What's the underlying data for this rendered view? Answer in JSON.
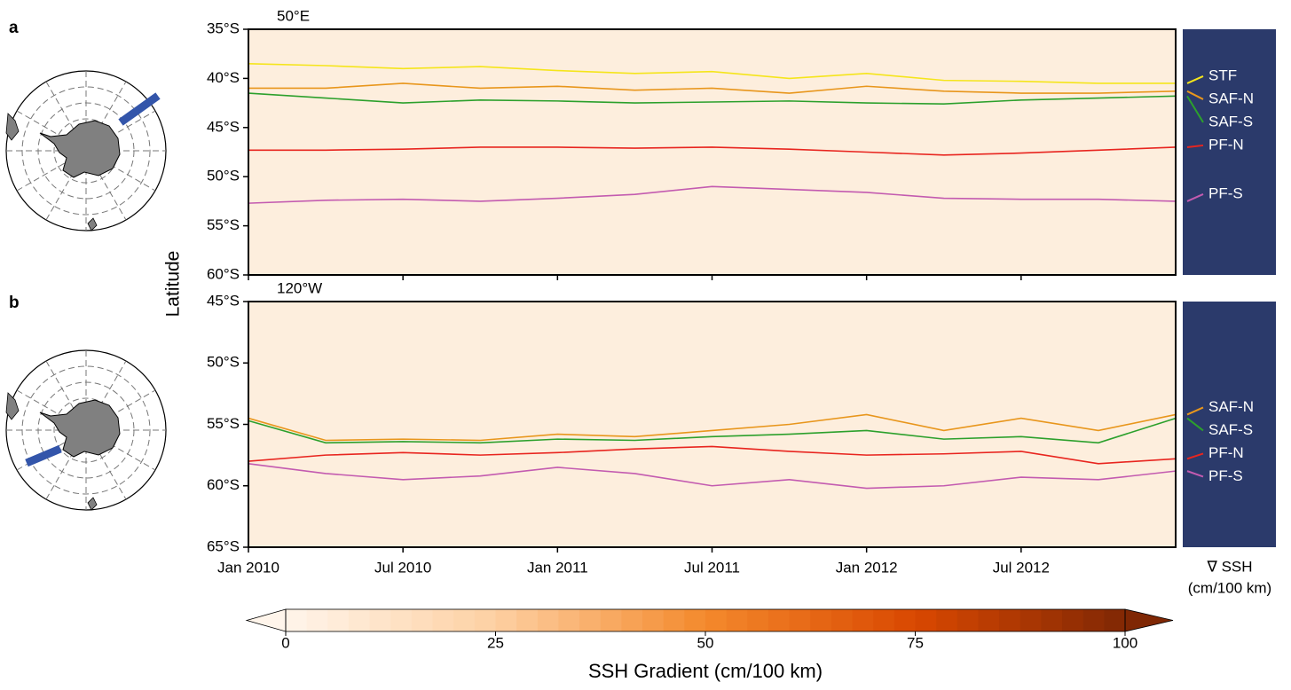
{
  "chart_data": [
    {
      "type": "line",
      "panel_label": "a",
      "title": "50°E",
      "ylabel": "Latitude",
      "x": [
        "2010-01",
        "2010-04",
        "2010-07",
        "2010-10",
        "2011-01",
        "2011-04",
        "2011-07",
        "2011-10",
        "2012-01",
        "2012-04",
        "2012-07",
        "2012-10",
        "2013-01"
      ],
      "xlim": [
        "2010-01",
        "2013-01"
      ],
      "xticks": [
        "2010-01",
        "2010-07",
        "2011-01",
        "2011-07",
        "2012-01",
        "2012-07"
      ],
      "ylim": [
        -60,
        -35
      ],
      "yticks": [
        {
          "value": -35,
          "label": "35°S"
        },
        {
          "value": -40,
          "label": "40°S"
        },
        {
          "value": -45,
          "label": "45°S"
        },
        {
          "value": -50,
          "label": "50°S"
        },
        {
          "value": -55,
          "label": "55°S"
        },
        {
          "value": -60,
          "label": "60°S"
        }
      ],
      "series": [
        {
          "name": "STF",
          "color": "#f5e51b",
          "values": [
            -38.5,
            -38.7,
            -39,
            -38.8,
            -39.2,
            -39.5,
            -39.3,
            -40,
            -39.5,
            -40.2,
            -40.3,
            -40.5,
            -40.5
          ]
        },
        {
          "name": "SAF-N",
          "color": "#e8961c",
          "values": [
            -41,
            -41,
            -40.5,
            -41,
            -40.8,
            -41.2,
            -41,
            -41.5,
            -40.8,
            -41.3,
            -41.5,
            -41.5,
            -41.3
          ]
        },
        {
          "name": "SAF-S",
          "color": "#2ca02c",
          "values": [
            -41.5,
            -42,
            -42.5,
            -42.2,
            -42.3,
            -42.5,
            -42.4,
            -42.3,
            -42.5,
            -42.6,
            -42.2,
            -42,
            -41.8
          ]
        },
        {
          "name": "PF-N",
          "color": "#e8251f",
          "values": [
            -47.3,
            -47.3,
            -47.2,
            -47,
            -47,
            -47.1,
            -47,
            -47.2,
            -47.5,
            -47.8,
            -47.6,
            -47.3,
            -47
          ]
        },
        {
          "name": "PF-S",
          "color": "#c35bb0",
          "values": [
            -52.7,
            -52.4,
            -52.3,
            -52.5,
            -52.2,
            -51.8,
            -51,
            -51.3,
            -51.6,
            -52.2,
            -52.3,
            -52.3,
            -52.5
          ]
        }
      ]
    },
    {
      "type": "line",
      "panel_label": "b",
      "title": "120°W",
      "x": [
        "2010-01",
        "2010-04",
        "2010-07",
        "2010-10",
        "2011-01",
        "2011-04",
        "2011-07",
        "2011-10",
        "2012-01",
        "2012-04",
        "2012-07",
        "2012-10",
        "2013-01"
      ],
      "xlim": [
        "2010-01",
        "2013-01"
      ],
      "xticks": [
        {
          "value": "2010-01",
          "label": "Jan 2010"
        },
        {
          "value": "2010-07",
          "label": "Jul 2010"
        },
        {
          "value": "2011-01",
          "label": "Jan 2011"
        },
        {
          "value": "2011-07",
          "label": "Jul 2011"
        },
        {
          "value": "2012-01",
          "label": "Jan 2012"
        },
        {
          "value": "2012-07",
          "label": "Jul 2012"
        }
      ],
      "ylim": [
        -65,
        -45
      ],
      "yticks": [
        {
          "value": -45,
          "label": "45°S"
        },
        {
          "value": -50,
          "label": "50°S"
        },
        {
          "value": -55,
          "label": "55°S"
        },
        {
          "value": -60,
          "label": "60°S"
        },
        {
          "value": -65,
          "label": "65°S"
        }
      ],
      "series": [
        {
          "name": "SAF-N",
          "color": "#e8961c",
          "values": [
            -54.5,
            -56.3,
            -56.2,
            -56.3,
            -55.8,
            -56,
            -55.5,
            -55,
            -54.2,
            -55.5,
            -54.5,
            -55.5,
            -54.2
          ]
        },
        {
          "name": "SAF-S",
          "color": "#2ca02c",
          "values": [
            -54.7,
            -56.5,
            -56.4,
            -56.5,
            -56.2,
            -56.3,
            -56,
            -55.8,
            -55.5,
            -56.2,
            -56,
            -56.5,
            -54.5
          ]
        },
        {
          "name": "PF-N",
          "color": "#e8251f",
          "values": [
            -58,
            -57.5,
            -57.3,
            -57.5,
            -57.3,
            -57,
            -56.8,
            -57.2,
            -57.5,
            -57.4,
            -57.2,
            -58.2,
            -57.8
          ]
        },
        {
          "name": "PF-S",
          "color": "#c35bb0",
          "values": [
            -58.2,
            -59,
            -59.5,
            -59.2,
            -58.5,
            -59,
            -60,
            -59.5,
            -60.2,
            -60,
            -59.3,
            -59.5,
            -58.8
          ]
        }
      ]
    }
  ],
  "colorbar": {
    "label": "SSH Gradient (cm/100 km)",
    "side_label": [
      "∇ SSH",
      "(cm/100 km)"
    ],
    "lim": [
      0,
      100
    ],
    "ticks": [
      0,
      25,
      50,
      75,
      100
    ],
    "cmap": [
      "#fff5eb",
      "#fdd0a2",
      "#f4892c",
      "#d94801",
      "#7f2704"
    ]
  }
}
